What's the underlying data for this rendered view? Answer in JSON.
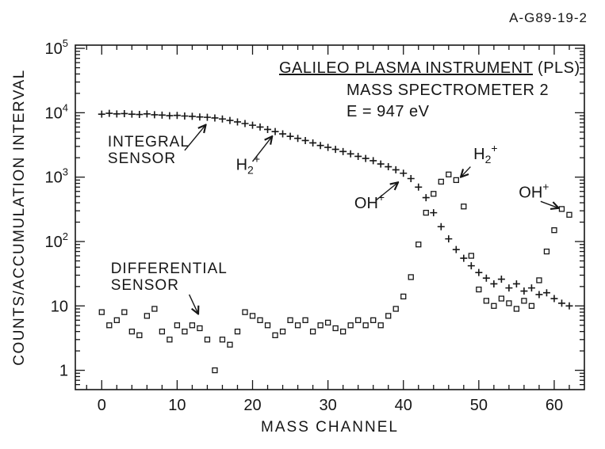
{
  "figure_id": "A-G89-19-2",
  "chart_data": {
    "type": "scatter",
    "title_lines": [
      "GALILEO PLASMA INSTRUMENT (PLS)",
      "MASS SPECTROMETER 2",
      "E = 947 eV"
    ],
    "xlabel": "MASS CHANNEL",
    "ylabel": "COUNTS/ACCUMULATION INTERVAL",
    "x_range": [
      -3.5,
      64
    ],
    "y_log_range": [
      -0.3,
      5.05
    ],
    "ylim": [
      1,
      100000
    ],
    "x_major_ticks": [
      0,
      10,
      20,
      30,
      40,
      50,
      60
    ],
    "x_minor_step": 2,
    "y_scale": "log",
    "y_decades": [
      0,
      1,
      2,
      3,
      4,
      5
    ],
    "y_tick_labels": [
      {
        "log": 0,
        "text": "1"
      },
      {
        "log": 1,
        "text": "10"
      },
      {
        "log": 2,
        "text": "10",
        "exp": "2"
      },
      {
        "log": 3,
        "text": "10",
        "exp": "3"
      },
      {
        "log": 4,
        "text": "10",
        "exp": "4"
      },
      {
        "log": 5,
        "text": "10",
        "exp": "5"
      }
    ],
    "grid": false,
    "series": [
      {
        "name": "INTEGRAL SENSOR",
        "marker": "plus",
        "x": [
          0,
          1,
          2,
          3,
          4,
          5,
          6,
          7,
          8,
          9,
          10,
          11,
          12,
          13,
          14,
          15,
          16,
          17,
          18,
          19,
          20,
          21,
          22,
          23,
          24,
          25,
          26,
          27,
          28,
          29,
          30,
          31,
          32,
          33,
          34,
          35,
          36,
          37,
          38,
          39,
          40,
          41,
          42,
          43,
          44,
          45,
          46,
          47,
          48,
          49,
          50,
          51,
          52,
          53,
          54,
          55,
          56,
          57,
          58,
          59,
          60,
          61,
          62
        ],
        "y": [
          9500,
          9800,
          9600,
          9700,
          9500,
          9400,
          9600,
          9300,
          9200,
          9000,
          9100,
          8900,
          8800,
          8600,
          8500,
          8300,
          8000,
          7600,
          7200,
          6800,
          6400,
          6000,
          5500,
          5100,
          4700,
          4300,
          4000,
          3700,
          3400,
          3100,
          2900,
          2700,
          2500,
          2300,
          2100,
          1950,
          1800,
          1600,
          1450,
          1300,
          1150,
          950,
          700,
          480,
          280,
          170,
          110,
          75,
          55,
          42,
          33,
          27,
          22,
          26,
          19,
          22,
          17,
          19,
          15,
          16,
          13,
          11,
          10
        ]
      },
      {
        "name": "DIFFERENTIAL SENSOR",
        "marker": "square",
        "x": [
          0,
          1,
          2,
          3,
          4,
          5,
          6,
          7,
          8,
          9,
          10,
          11,
          12,
          13,
          14,
          15,
          16,
          17,
          18,
          19,
          20,
          21,
          22,
          23,
          24,
          25,
          26,
          27,
          28,
          29,
          30,
          31,
          32,
          33,
          34,
          35,
          36,
          37,
          38,
          39,
          40,
          41,
          42,
          43,
          44,
          45,
          46,
          47,
          48,
          49,
          50,
          51,
          52,
          53,
          54,
          55,
          56,
          57,
          58,
          59,
          60,
          61,
          62
        ],
        "y": [
          8,
          5,
          6,
          8,
          4,
          3.5,
          7,
          9,
          4,
          3,
          5,
          4,
          5,
          4.5,
          3,
          1,
          3,
          2.5,
          4,
          8,
          7,
          6,
          5,
          3.5,
          4,
          6,
          5,
          6,
          4,
          5,
          5.5,
          4.5,
          4,
          5,
          6,
          5,
          6,
          5,
          7,
          9,
          14,
          28,
          90,
          280,
          550,
          850,
          1100,
          900,
          350,
          60,
          18,
          12,
          10,
          13,
          11,
          9,
          12,
          10,
          25,
          70,
          150,
          320,
          260
        ]
      }
    ],
    "annotations": [
      {
        "id": "integral-sensor-label",
        "lines": [
          "INTEGRAL",
          "SENSOR"
        ],
        "x": 0.8,
        "y": 3000,
        "arrow": {
          "x1": 11.0,
          "y1": 2600,
          "x2": 13.8,
          "y2": 6500
        }
      },
      {
        "id": "h2-plus-integral-label",
        "formula": "H2+",
        "x": 17.8,
        "y": 1300,
        "arrow": {
          "x1": 20.0,
          "y1": 1750,
          "x2": 22.6,
          "y2": 4300
        }
      },
      {
        "id": "oh-plus-integral-label",
        "formula": "OH+",
        "x": 33.5,
        "y": 330,
        "arrow": {
          "x1": 36.3,
          "y1": 430,
          "x2": 39.3,
          "y2": 830
        }
      },
      {
        "id": "h2-plus-differential-label",
        "formula": "H2+",
        "x": 49.3,
        "y": 1900,
        "arrow": {
          "x1": 48.9,
          "y1": 1450,
          "x2": 47.6,
          "y2": 1000
        }
      },
      {
        "id": "oh-plus-differential-label",
        "formula": "OH+",
        "x": 55.3,
        "y": 480,
        "arrow": {
          "x1": 58.2,
          "y1": 420,
          "x2": 60.6,
          "y2": 330
        }
      },
      {
        "id": "differential-sensor-label",
        "lines": [
          "DIFFERENTIAL",
          "SENSOR"
        ],
        "x": 1.2,
        "y": 32,
        "arrow": {
          "x1": 11.6,
          "y1": 15,
          "x2": 12.8,
          "y2": 7.5
        }
      }
    ],
    "ink_color": "#161616"
  }
}
